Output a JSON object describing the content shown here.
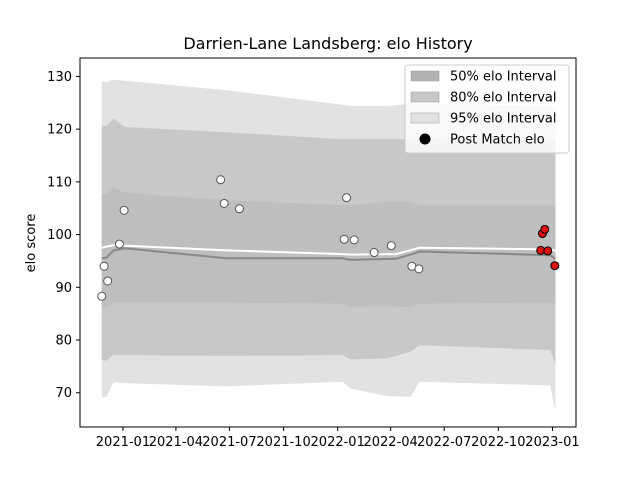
{
  "chart_data": {
    "type": "line",
    "title": "Darrien-Lane Landsberg: elo History",
    "xlabel": "",
    "ylabel": "elo score",
    "xlim": [
      "2020-10-20",
      "2023-02-10"
    ],
    "ylim": [
      63.5,
      133.5
    ],
    "yticks": [
      70,
      80,
      90,
      100,
      110,
      120,
      130
    ],
    "xticks": [
      "2021-01-01",
      "2021-04-01",
      "2021-07-01",
      "2021-10-01",
      "2022-01-01",
      "2022-04-01",
      "2022-07-01",
      "2022-10-01",
      "2023-01-01"
    ],
    "xtick_labels": [
      "2021-01",
      "2021-04",
      "2021-07",
      "2021-10",
      "2022-01",
      "2022-04",
      "2022-07",
      "2022-10",
      "2023-01"
    ],
    "grid": false,
    "legend_position": "top-right",
    "legend": [
      {
        "label": "50% elo Interval",
        "color": "#b3b3b3",
        "kind": "patch"
      },
      {
        "label": "80% elo Interval",
        "color": "#c8c8c8",
        "kind": "patch"
      },
      {
        "label": "95% elo Interval",
        "color": "#e2e2e2",
        "kind": "patch"
      },
      {
        "label": "Post Match elo",
        "color": "#000000",
        "kind": "marker"
      }
    ],
    "band_x": [
      "2020-11-26",
      "2020-12-04",
      "2020-12-16",
      "2021-01-05",
      "2021-06-26",
      "2022-01-10",
      "2022-01-22",
      "2022-03-25",
      "2022-05-05",
      "2022-05-20",
      "2022-12-28",
      "2023-01-06"
    ],
    "band_95_upper": [
      129,
      128.9,
      129.4,
      129.2,
      127.4,
      124.6,
      124.4,
      124.4,
      124.8,
      124.9,
      124.4,
      124.2
    ],
    "band_95_lower": [
      69.2,
      69.2,
      72,
      71.8,
      71.2,
      72.1,
      70.8,
      69.4,
      69.2,
      72.1,
      71.4,
      66.6
    ],
    "band_80_upper": [
      120.7,
      120.6,
      122,
      120.4,
      119.4,
      118.1,
      118.1,
      118.1,
      118.1,
      118.2,
      117.8,
      118.5
    ],
    "band_80_lower": [
      76.2,
      76.1,
      77.2,
      77.1,
      77,
      77.1,
      76.3,
      76.5,
      77.8,
      79,
      78.1,
      75.5
    ],
    "band_50_upper": [
      107.8,
      107.5,
      109,
      107.9,
      106.5,
      105.6,
      105.6,
      106.2,
      106.2,
      105.6,
      105.6,
      105.6
    ],
    "band_50_lower": [
      86.3,
      86.2,
      87.2,
      87.2,
      87.1,
      86.9,
      86.3,
      86.4,
      86.2,
      86.9,
      87.1,
      86.9
    ],
    "line_white": {
      "x": [
        "2020-11-26",
        "2020-12-16",
        "2021-01-05",
        "2021-06-26",
        "2022-01-10",
        "2022-01-22",
        "2022-04-10",
        "2022-05-20",
        "2022-12-28",
        "2023-01-06"
      ],
      "y": [
        97.5,
        98,
        97.9,
        97,
        96.3,
        96.2,
        96.3,
        97.5,
        97.2,
        96.9
      ]
    },
    "line_dark": {
      "x": [
        "2020-11-26",
        "2020-12-04",
        "2020-12-16",
        "2021-01-05",
        "2021-06-26",
        "2022-01-10",
        "2022-01-22",
        "2022-04-10",
        "2022-05-05",
        "2022-05-20",
        "2022-12-28",
        "2023-01-06"
      ],
      "y": [
        95.5,
        95.6,
        97,
        97.4,
        95.5,
        95.5,
        95.2,
        95.4,
        96.2,
        96.8,
        96.1,
        95.4
      ]
    },
    "points_white": [
      {
        "x": "2020-11-26",
        "y": 88.3
      },
      {
        "x": "2020-11-30",
        "y": 94
      },
      {
        "x": "2020-12-06",
        "y": 91.2
      },
      {
        "x": "2020-12-26",
        "y": 98.2
      },
      {
        "x": "2021-01-03",
        "y": 104.6
      },
      {
        "x": "2021-06-16",
        "y": 110.4
      },
      {
        "x": "2021-06-22",
        "y": 105.9
      },
      {
        "x": "2021-07-18",
        "y": 104.9
      },
      {
        "x": "2022-01-12",
        "y": 99.1
      },
      {
        "x": "2022-01-16",
        "y": 107
      },
      {
        "x": "2022-01-29",
        "y": 99
      },
      {
        "x": "2022-03-04",
        "y": 96.6
      },
      {
        "x": "2022-04-02",
        "y": 97.9
      },
      {
        "x": "2022-05-07",
        "y": 94
      },
      {
        "x": "2022-05-19",
        "y": 93.5
      }
    ],
    "points_red": [
      {
        "x": "2022-12-12",
        "y": 97
      },
      {
        "x": "2022-12-15",
        "y": 100.2
      },
      {
        "x": "2022-12-19",
        "y": 101
      },
      {
        "x": "2022-12-24",
        "y": 96.9
      },
      {
        "x": "2023-01-05",
        "y": 94.1
      }
    ],
    "colors": {
      "band_95": "#e2e2e2",
      "band_80": "#c8c8c8",
      "band_50": "#bebebe",
      "line_white": "#ffffff",
      "line_dark": "#888888",
      "marker_white": "#ffffff",
      "marker_red": "#dd1111"
    }
  }
}
